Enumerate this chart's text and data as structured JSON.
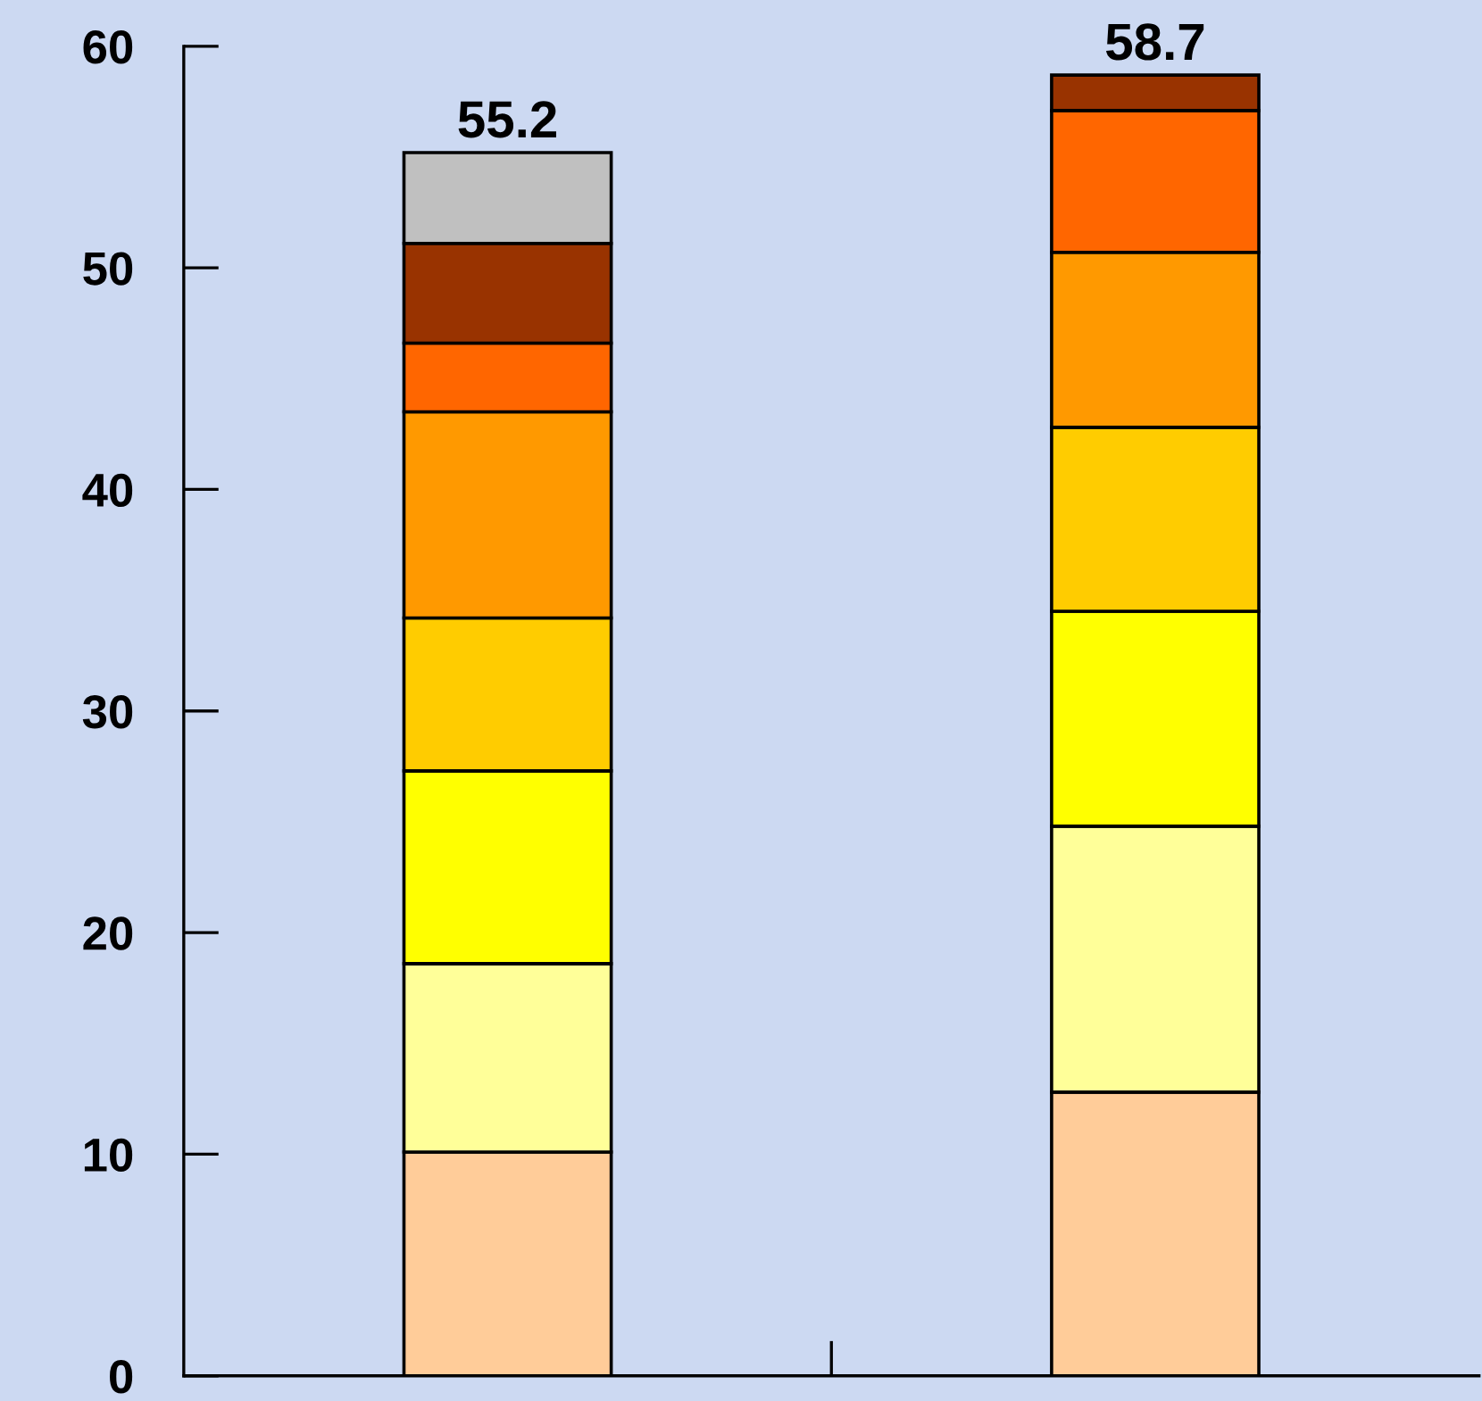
{
  "chart_data": {
    "type": "bar",
    "stacked": true,
    "categories": [
      null,
      null
    ],
    "series": [
      {
        "color": "#ffcc99",
        "values": [
          10.1,
          12.8
        ]
      },
      {
        "color": "#ffff99",
        "values": [
          8.5,
          12.0
        ]
      },
      {
        "color": "#ffff00",
        "values": [
          8.7,
          9.7
        ]
      },
      {
        "color": "#ffcc00",
        "values": [
          6.9,
          8.3
        ]
      },
      {
        "color": "#ff9900",
        "values": [
          9.3,
          7.9
        ]
      },
      {
        "color": "#ff6600",
        "values": [
          3.1,
          6.4
        ]
      },
      {
        "color": "#993300",
        "values": [
          4.5,
          1.6
        ]
      },
      {
        "color": "#c0c0c0",
        "values": [
          4.1,
          null
        ]
      }
    ],
    "totals": [
      "55.2",
      "58.7"
    ],
    "ylim": [
      0,
      60
    ],
    "yticks": [
      0,
      10,
      20,
      30,
      40,
      50,
      60
    ],
    "grid": false,
    "legend": false
  }
}
